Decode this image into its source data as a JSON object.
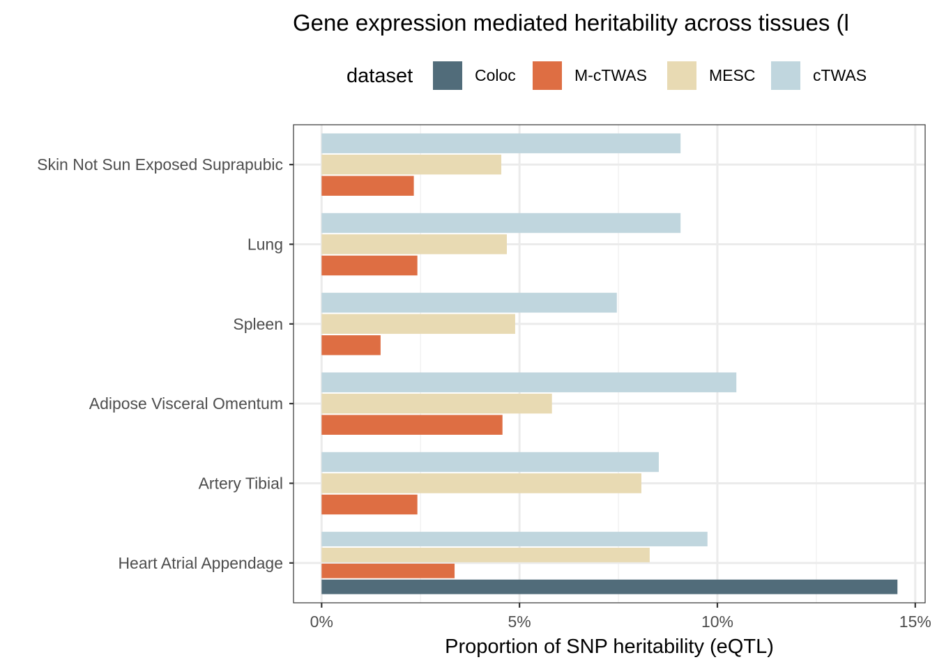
{
  "chart_data": {
    "type": "bar",
    "orientation": "horizontal",
    "title": "Gene expression mediated heritability across tissues (l",
    "xlabel": "Proportion of SNP heritability (eQTL)",
    "ylabel": "",
    "xlim": [
      -0.71,
      15.25
    ],
    "x_ticks": [
      0,
      5,
      10,
      15
    ],
    "x_tick_labels": [
      "0%",
      "5%",
      "10%",
      "15%"
    ],
    "grid": true,
    "legend": {
      "title": "dataset",
      "placement": "top",
      "entries": [
        {
          "name": "Coloc",
          "color": "#516c7a"
        },
        {
          "name": "M-cTWAS",
          "color": "#de6e43"
        },
        {
          "name": "MESC",
          "color": "#e8dab3"
        },
        {
          "name": "cTWAS",
          "color": "#c0d6de"
        }
      ]
    },
    "categories": [
      "Skin Not Sun Exposed Suprapubic",
      "Lung",
      "Spleen",
      "Adipose Visceral Omentum",
      "Artery Tibial",
      "Heart Atrial Appendage"
    ],
    "series": [
      {
        "name": "cTWAS",
        "color": "#c0d6de",
        "values": [
          9.07,
          9.07,
          7.46,
          10.48,
          8.52,
          9.75
        ]
      },
      {
        "name": "MESC",
        "color": "#e8dab3",
        "values": [
          4.54,
          4.68,
          4.89,
          5.82,
          8.08,
          8.29
        ]
      },
      {
        "name": "M-cTWAS",
        "color": "#de6e43",
        "values": [
          2.33,
          2.42,
          1.49,
          4.57,
          2.42,
          3.36
        ]
      },
      {
        "name": "Coloc",
        "color": "#516c7a",
        "values": [
          null,
          null,
          null,
          null,
          null,
          14.55
        ]
      }
    ]
  }
}
